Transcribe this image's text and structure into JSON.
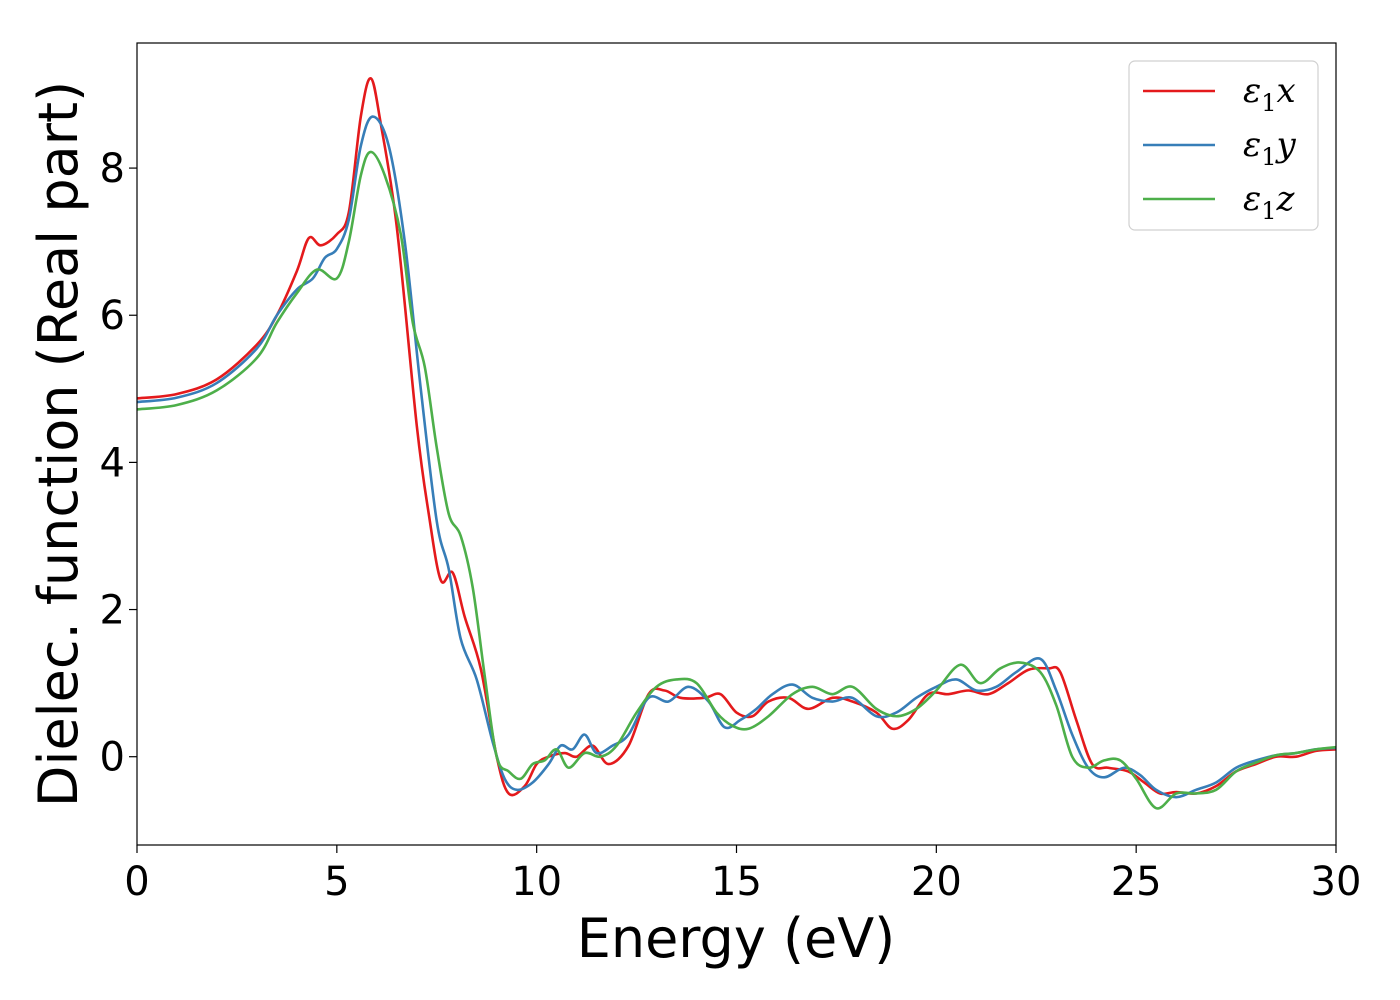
{
  "chart_data": {
    "type": "line",
    "xlabel": "Energy (eV)",
    "ylabel": "Dielec. function (Real part)",
    "xlim": [
      0,
      30
    ],
    "ylim": [
      -1.2,
      9.7
    ],
    "xticks": [
      0,
      5,
      10,
      15,
      20,
      25,
      30
    ],
    "yticks": [
      0,
      2,
      4,
      6,
      8
    ],
    "grid": false,
    "legend_position": "top-right",
    "series": [
      {
        "name": "ε₁x",
        "legend_base": "ε",
        "legend_sub": "1",
        "legend_var": "x",
        "color": "#e41a1c",
        "points": [
          [
            0,
            4.87
          ],
          [
            1,
            4.93
          ],
          [
            2,
            5.13
          ],
          [
            3,
            5.6
          ],
          [
            3.5,
            6.0
          ],
          [
            4,
            6.6
          ],
          [
            4.3,
            7.05
          ],
          [
            4.6,
            6.95
          ],
          [
            5,
            7.1
          ],
          [
            5.3,
            7.4
          ],
          [
            5.6,
            8.7
          ],
          [
            5.85,
            9.22
          ],
          [
            6.1,
            8.6
          ],
          [
            6.5,
            7.2
          ],
          [
            7,
            4.5
          ],
          [
            7.3,
            3.3
          ],
          [
            7.6,
            2.4
          ],
          [
            7.9,
            2.5
          ],
          [
            8.2,
            1.9
          ],
          [
            8.6,
            1.2
          ],
          [
            9.0,
            0.0
          ],
          [
            9.3,
            -0.5
          ],
          [
            9.7,
            -0.4
          ],
          [
            10.0,
            -0.1
          ],
          [
            10.3,
            0.0
          ],
          [
            10.7,
            0.05
          ],
          [
            11.0,
            0.0
          ],
          [
            11.4,
            0.15
          ],
          [
            11.8,
            -0.1
          ],
          [
            12.3,
            0.15
          ],
          [
            12.8,
            0.85
          ],
          [
            13.2,
            0.9
          ],
          [
            13.6,
            0.8
          ],
          [
            14.2,
            0.8
          ],
          [
            14.6,
            0.85
          ],
          [
            15.0,
            0.6
          ],
          [
            15.4,
            0.55
          ],
          [
            15.8,
            0.75
          ],
          [
            16.3,
            0.8
          ],
          [
            16.8,
            0.65
          ],
          [
            17.4,
            0.8
          ],
          [
            17.9,
            0.75
          ],
          [
            18.5,
            0.6
          ],
          [
            18.9,
            0.38
          ],
          [
            19.3,
            0.5
          ],
          [
            19.8,
            0.85
          ],
          [
            20.3,
            0.85
          ],
          [
            20.8,
            0.9
          ],
          [
            21.3,
            0.85
          ],
          [
            21.8,
            1.0
          ],
          [
            22.3,
            1.18
          ],
          [
            22.8,
            1.2
          ],
          [
            23.1,
            1.15
          ],
          [
            23.5,
            0.5
          ],
          [
            23.9,
            -0.1
          ],
          [
            24.3,
            -0.15
          ],
          [
            24.8,
            -0.2
          ],
          [
            25.2,
            -0.35
          ],
          [
            25.6,
            -0.5
          ],
          [
            26.0,
            -0.48
          ],
          [
            26.5,
            -0.5
          ],
          [
            27.0,
            -0.4
          ],
          [
            27.5,
            -0.2
          ],
          [
            28.0,
            -0.1
          ],
          [
            28.5,
            0.0
          ],
          [
            29.0,
            0.0
          ],
          [
            29.5,
            0.08
          ],
          [
            30.0,
            0.1
          ]
        ]
      },
      {
        "name": "ε₁y",
        "legend_base": "ε",
        "legend_sub": "1",
        "legend_var": "y",
        "color": "#377eb8",
        "points": [
          [
            0,
            4.82
          ],
          [
            1,
            4.88
          ],
          [
            2,
            5.08
          ],
          [
            3,
            5.55
          ],
          [
            3.5,
            6.0
          ],
          [
            4,
            6.35
          ],
          [
            4.4,
            6.5
          ],
          [
            4.7,
            6.78
          ],
          [
            5,
            6.9
          ],
          [
            5.3,
            7.3
          ],
          [
            5.6,
            8.3
          ],
          [
            5.9,
            8.7
          ],
          [
            6.3,
            8.3
          ],
          [
            6.7,
            7.0
          ],
          [
            7.1,
            5.0
          ],
          [
            7.5,
            3.2
          ],
          [
            7.8,
            2.55
          ],
          [
            8.1,
            1.6
          ],
          [
            8.5,
            1.05
          ],
          [
            8.9,
            0.2
          ],
          [
            9.2,
            -0.3
          ],
          [
            9.5,
            -0.45
          ],
          [
            9.9,
            -0.35
          ],
          [
            10.3,
            -0.1
          ],
          [
            10.6,
            0.15
          ],
          [
            10.9,
            0.1
          ],
          [
            11.2,
            0.3
          ],
          [
            11.5,
            0.05
          ],
          [
            11.9,
            0.15
          ],
          [
            12.3,
            0.3
          ],
          [
            12.8,
            0.8
          ],
          [
            13.3,
            0.75
          ],
          [
            13.8,
            0.95
          ],
          [
            14.3,
            0.75
          ],
          [
            14.7,
            0.4
          ],
          [
            15.1,
            0.5
          ],
          [
            15.5,
            0.65
          ],
          [
            15.9,
            0.85
          ],
          [
            16.4,
            0.98
          ],
          [
            16.9,
            0.8
          ],
          [
            17.4,
            0.75
          ],
          [
            17.9,
            0.8
          ],
          [
            18.5,
            0.55
          ],
          [
            19.0,
            0.6
          ],
          [
            19.5,
            0.8
          ],
          [
            20.0,
            0.95
          ],
          [
            20.5,
            1.05
          ],
          [
            21.0,
            0.9
          ],
          [
            21.5,
            0.95
          ],
          [
            22.0,
            1.15
          ],
          [
            22.6,
            1.33
          ],
          [
            23.0,
            0.9
          ],
          [
            23.4,
            0.3
          ],
          [
            23.8,
            -0.15
          ],
          [
            24.2,
            -0.28
          ],
          [
            24.7,
            -0.15
          ],
          [
            25.1,
            -0.25
          ],
          [
            25.5,
            -0.45
          ],
          [
            26.0,
            -0.55
          ],
          [
            26.5,
            -0.45
          ],
          [
            27.0,
            -0.35
          ],
          [
            27.5,
            -0.15
          ],
          [
            28.0,
            -0.05
          ],
          [
            28.5,
            0.02
          ],
          [
            29.0,
            0.05
          ],
          [
            29.5,
            0.1
          ],
          [
            30.0,
            0.12
          ]
        ]
      },
      {
        "name": "ε₁z",
        "legend_base": "ε",
        "legend_sub": "1",
        "legend_var": "z",
        "color": "#4daf4a",
        "points": [
          [
            0,
            4.72
          ],
          [
            1,
            4.78
          ],
          [
            2,
            4.98
          ],
          [
            3,
            5.42
          ],
          [
            3.5,
            5.9
          ],
          [
            4,
            6.3
          ],
          [
            4.5,
            6.62
          ],
          [
            5,
            6.5
          ],
          [
            5.3,
            7.0
          ],
          [
            5.6,
            7.9
          ],
          [
            5.85,
            8.22
          ],
          [
            6.2,
            7.9
          ],
          [
            6.6,
            7.1
          ],
          [
            6.9,
            5.9
          ],
          [
            7.2,
            5.3
          ],
          [
            7.5,
            4.2
          ],
          [
            7.8,
            3.3
          ],
          [
            8.1,
            3.0
          ],
          [
            8.4,
            2.3
          ],
          [
            8.7,
            1.1
          ],
          [
            9.0,
            0.0
          ],
          [
            9.3,
            -0.2
          ],
          [
            9.6,
            -0.3
          ],
          [
            9.9,
            -0.1
          ],
          [
            10.2,
            -0.05
          ],
          [
            10.5,
            0.1
          ],
          [
            10.8,
            -0.15
          ],
          [
            11.2,
            0.05
          ],
          [
            11.6,
            0.0
          ],
          [
            12.0,
            0.15
          ],
          [
            12.5,
            0.6
          ],
          [
            13.0,
            0.95
          ],
          [
            13.5,
            1.05
          ],
          [
            14.0,
            1.0
          ],
          [
            14.5,
            0.6
          ],
          [
            14.9,
            0.42
          ],
          [
            15.3,
            0.38
          ],
          [
            15.8,
            0.55
          ],
          [
            16.4,
            0.85
          ],
          [
            16.9,
            0.95
          ],
          [
            17.4,
            0.85
          ],
          [
            17.9,
            0.95
          ],
          [
            18.5,
            0.65
          ],
          [
            19.0,
            0.55
          ],
          [
            19.5,
            0.65
          ],
          [
            20.0,
            0.9
          ],
          [
            20.6,
            1.25
          ],
          [
            21.1,
            1.0
          ],
          [
            21.6,
            1.2
          ],
          [
            22.1,
            1.28
          ],
          [
            22.6,
            1.15
          ],
          [
            23.0,
            0.7
          ],
          [
            23.4,
            0.0
          ],
          [
            23.8,
            -0.15
          ],
          [
            24.2,
            -0.05
          ],
          [
            24.6,
            -0.05
          ],
          [
            25.0,
            -0.3
          ],
          [
            25.5,
            -0.7
          ],
          [
            26.0,
            -0.5
          ],
          [
            26.5,
            -0.5
          ],
          [
            27.0,
            -0.45
          ],
          [
            27.5,
            -0.2
          ],
          [
            28.0,
            -0.08
          ],
          [
            28.5,
            0.02
          ],
          [
            29.0,
            0.05
          ],
          [
            29.5,
            0.1
          ],
          [
            30.0,
            0.13
          ]
        ]
      }
    ]
  }
}
